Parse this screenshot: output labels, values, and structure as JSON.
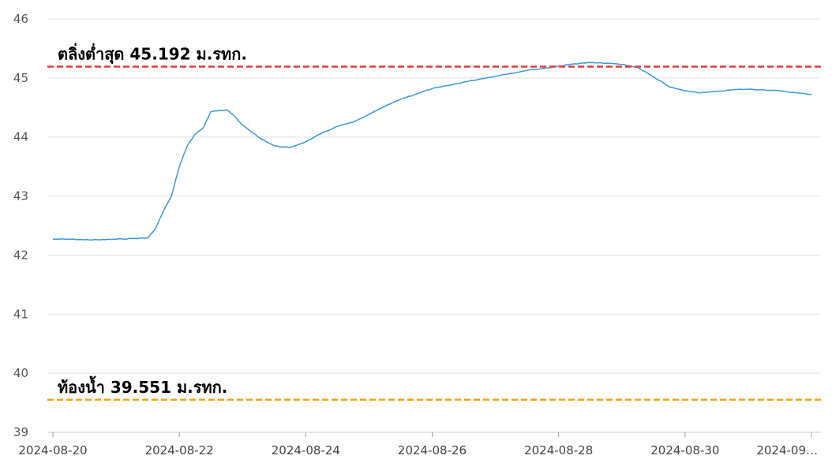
{
  "chart_data": {
    "type": "line",
    "title": "",
    "xlabel": "",
    "ylabel": "",
    "ylim": [
      39,
      46
    ],
    "xlim": [
      "2024-08-20",
      "2024-09-01"
    ],
    "yticks": [
      "39",
      "40",
      "41",
      "42",
      "43",
      "44",
      "45",
      "46"
    ],
    "xticks": [
      "2024-08-20",
      "2024-08-22",
      "2024-08-24",
      "2024-08-26",
      "2024-08-28",
      "2024-08-30",
      "2024-09…"
    ],
    "grid": "horizontal",
    "colors": {
      "series": "#3a98d8",
      "bank": "#e83838",
      "bed": "#f5a412",
      "grid": "#e0e0e0"
    },
    "series": [
      {
        "x": [
          "2024-08-20T00:00",
          "2024-08-20T06:00",
          "2024-08-20T12:00",
          "2024-08-20T18:00",
          "2024-08-21T00:00",
          "2024-08-21T06:00",
          "2024-08-21T12:00",
          "2024-08-21T15:00",
          "2024-08-21T18:00",
          "2024-08-21T21:00",
          "2024-08-22T00:00",
          "2024-08-22T03:00",
          "2024-08-22T06:00",
          "2024-08-22T09:00",
          "2024-08-22T12:00",
          "2024-08-22T15:00",
          "2024-08-22T18:00",
          "2024-08-22T21:00",
          "2024-08-23T00:00",
          "2024-08-23T06:00",
          "2024-08-23T12:00",
          "2024-08-23T18:00",
          "2024-08-24T00:00",
          "2024-08-24T06:00",
          "2024-08-24T12:00",
          "2024-08-24T18:00",
          "2024-08-25T00:00",
          "2024-08-25T06:00",
          "2024-08-25T12:00",
          "2024-08-25T18:00",
          "2024-08-26T00:00",
          "2024-08-26T06:00",
          "2024-08-26T12:00",
          "2024-08-26T18:00",
          "2024-08-27T00:00",
          "2024-08-27T06:00",
          "2024-08-27T12:00",
          "2024-08-27T18:00",
          "2024-08-28T00:00",
          "2024-08-28T06:00",
          "2024-08-28T12:00",
          "2024-08-28T18:00",
          "2024-08-29T00:00",
          "2024-08-29T06:00",
          "2024-08-29T12:00",
          "2024-08-29T18:00",
          "2024-08-30T00:00",
          "2024-08-30T06:00",
          "2024-08-30T12:00",
          "2024-08-30T18:00",
          "2024-08-31T00:00",
          "2024-08-31T06:00",
          "2024-08-31T12:00",
          "2024-08-31T18:00",
          "2024-09-01T00:00"
        ],
        "values": [
          42.27,
          42.27,
          42.26,
          42.26,
          42.27,
          42.28,
          42.29,
          42.45,
          42.75,
          43.0,
          43.5,
          43.85,
          44.05,
          44.15,
          44.43,
          44.45,
          44.46,
          44.35,
          44.2,
          44.0,
          43.85,
          43.82,
          43.92,
          44.06,
          44.18,
          44.25,
          44.38,
          44.52,
          44.64,
          44.73,
          44.82,
          44.87,
          44.93,
          44.98,
          45.03,
          45.08,
          45.13,
          45.16,
          45.2,
          45.24,
          45.26,
          45.25,
          45.23,
          45.18,
          45.02,
          44.85,
          44.78,
          44.75,
          44.77,
          44.8,
          44.81,
          44.8,
          44.78,
          44.75,
          44.72
        ]
      }
    ],
    "reference_lines": [
      {
        "name": "bank",
        "value": 45.192,
        "label": "ตลิ่งต่ำสุด 45.192 ม.รทก."
      },
      {
        "name": "bed",
        "value": 39.551,
        "label": "ท้องน้ำ 39.551 ม.รทก."
      }
    ]
  }
}
